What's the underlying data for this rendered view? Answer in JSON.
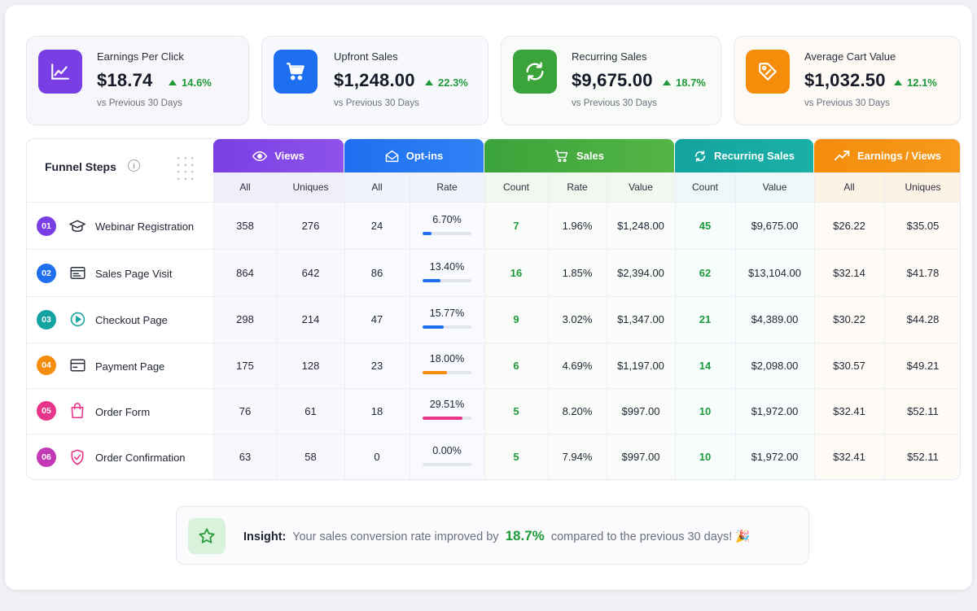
{
  "cards": [
    {
      "label": "Earnings Per Click",
      "value": "$18.74",
      "change": "14.6%",
      "sub": "vs Previous 30 Days",
      "icon": "trend-up-icon",
      "color": "#7a3fe4"
    },
    {
      "label": "Upfront Sales",
      "value": "$1,248.00",
      "change": "22.3%",
      "sub": "vs Previous 30 Days",
      "icon": "cart-icon",
      "color": "#1e6ff0"
    },
    {
      "label": "Recurring Sales",
      "value": "$9,675.00",
      "change": "18.7%",
      "sub": "vs Previous 30 Days",
      "icon": "refresh-icon",
      "color": "#3aa33a"
    },
    {
      "label": "Average Cart Value",
      "value": "$1,032.50",
      "change": "12.1%",
      "sub": "vs Previous 30 Days",
      "icon": "tag-icon",
      "color": "#f58c0a"
    }
  ],
  "table": {
    "steps_header": "Funnel Steps",
    "info": "i",
    "groups": [
      {
        "label": "Views",
        "icon": "eye-icon",
        "color": "#7a3fe4"
      },
      {
        "label": "Opt-ins",
        "icon": "mail-icon",
        "color": "#1e6ff0"
      },
      {
        "label": "Sales",
        "icon": "cart-icon",
        "color": "#3aa33a"
      },
      {
        "label": "Recurring Sales",
        "icon": "refresh-icon",
        "color": "#14a3a0"
      },
      {
        "label": "Earnings / Views",
        "icon": "trend-up-icon",
        "color": "#f58c0a"
      }
    ],
    "subheaders": [
      "All",
      "Uniques",
      "All",
      "Rate",
      "Count",
      "Rate",
      "Value",
      "Count",
      "Value",
      "All",
      "Uniques"
    ],
    "rows": [
      {
        "num": "01",
        "name": "Webinar Registration",
        "icon": "graduation-cap-icon",
        "color": "#7a3fe4",
        "views_all": "358",
        "views_uniques": "276",
        "optins_all": "24",
        "optins_rate": "6.70%",
        "optins_rate_value": 6.7,
        "bar_color": "#1e6ff0",
        "sales_count": "7",
        "sales_rate": "1.96%",
        "sales_value": "$1,248.00",
        "rec_count": "45",
        "rec_value": "$9,675.00",
        "earn_all": "$26.22",
        "earn_uniques": "$35.05"
      },
      {
        "num": "02",
        "name": "Sales Page Visit",
        "icon": "browser-icon",
        "color": "#1e6ff0",
        "views_all": "864",
        "views_uniques": "642",
        "optins_all": "86",
        "optins_rate": "13.40%",
        "optins_rate_value": 13.4,
        "bar_color": "#1e6ff0",
        "sales_count": "16",
        "sales_rate": "1.85%",
        "sales_value": "$2,394.00",
        "rec_count": "62",
        "rec_value": "$13,104.00",
        "earn_all": "$32.14",
        "earn_uniques": "$41.78"
      },
      {
        "num": "03",
        "name": "Checkout Page",
        "icon": "play-circle-icon",
        "color": "#14a3a0",
        "views_all": "298",
        "views_uniques": "214",
        "optins_all": "47",
        "optins_rate": "15.77%",
        "optins_rate_value": 15.77,
        "bar_color": "#1e6ff0",
        "sales_count": "9",
        "sales_rate": "3.02%",
        "sales_value": "$1,347.00",
        "rec_count": "21",
        "rec_value": "$4,389.00",
        "earn_all": "$30.22",
        "earn_uniques": "$44.28"
      },
      {
        "num": "04",
        "name": "Payment Page",
        "icon": "credit-card-icon",
        "color": "#f58c0a",
        "views_all": "175",
        "views_uniques": "128",
        "optins_all": "23",
        "optins_rate": "18.00%",
        "optins_rate_value": 18.0,
        "bar_color": "#f58c0a",
        "sales_count": "6",
        "sales_rate": "4.69%",
        "sales_value": "$1,197.00",
        "rec_count": "14",
        "rec_value": "$2,098.00",
        "earn_all": "$30.57",
        "earn_uniques": "$49.21"
      },
      {
        "num": "05",
        "name": "Order Form",
        "icon": "shopping-bag-icon",
        "color": "#e8358a",
        "views_all": "76",
        "views_uniques": "61",
        "optins_all": "18",
        "optins_rate": "29.51%",
        "optins_rate_value": 29.51,
        "bar_color": "#e8358a",
        "sales_count": "5",
        "sales_rate": "8.20%",
        "sales_value": "$997.00",
        "rec_count": "10",
        "rec_value": "$1,972.00",
        "earn_all": "$32.41",
        "earn_uniques": "$52.11"
      },
      {
        "num": "06",
        "name": "Order Confirmation",
        "icon": "shield-check-icon",
        "color": "#c23ab5",
        "views_all": "63",
        "views_uniques": "58",
        "optins_all": "0",
        "optins_rate": "0.00%",
        "optins_rate_value": 0.0,
        "bar_color": "#1e6ff0",
        "sales_count": "5",
        "sales_rate": "7.94%",
        "sales_value": "$997.00",
        "rec_count": "10",
        "rec_value": "$1,972.00",
        "earn_all": "$32.41",
        "earn_uniques": "$52.11"
      }
    ]
  },
  "insight": {
    "label": "Insight:",
    "text_before": "Your sales conversion rate improved by",
    "highlight": "18.7%",
    "text_after": "compared to the previous 30 days! 🎉"
  }
}
